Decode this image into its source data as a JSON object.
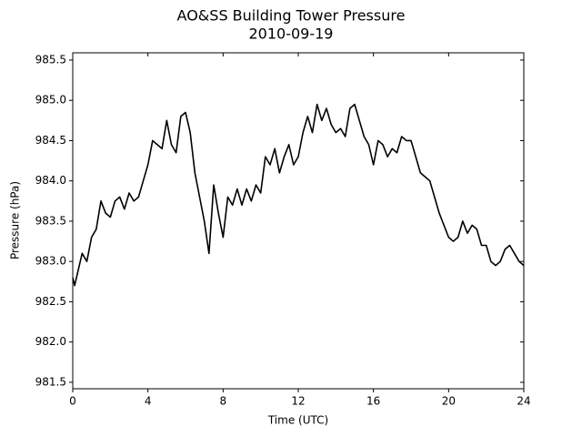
{
  "chart_data": {
    "type": "line",
    "title": "AO&SS Building Tower Pressure",
    "subtitle": "2010-09-19",
    "x_label": "Time (UTC)",
    "y_label": "Pressure (hPa)",
    "color": "#000000",
    "x": [
      0,
      0.1,
      0.25,
      0.5,
      0.75,
      1,
      1.25,
      1.5,
      1.75,
      2,
      2.25,
      2.5,
      2.75,
      3,
      3.25,
      3.5,
      3.75,
      4,
      4.25,
      4.5,
      4.75,
      5,
      5.25,
      5.5,
      5.75,
      6,
      6.25,
      6.5,
      6.75,
      7,
      7.25,
      7.5,
      7.75,
      8,
      8.25,
      8.5,
      8.75,
      9,
      9.25,
      9.5,
      9.75,
      10,
      10.25,
      10.5,
      10.75,
      11,
      11.25,
      11.5,
      11.75,
      12,
      12.25,
      12.5,
      12.75,
      13,
      13.25,
      13.5,
      13.75,
      14,
      14.25,
      14.5,
      14.75,
      15,
      15.25,
      15.5,
      15.75,
      16,
      16.25,
      16.5,
      16.75,
      17,
      17.25,
      17.5,
      17.75,
      18,
      18.25,
      18.5,
      18.75,
      19,
      19.25,
      19.5,
      19.75,
      20,
      20.25,
      20.5,
      20.75,
      21,
      21.25,
      21.5,
      21.75,
      22,
      22.25,
      22.5,
      22.75,
      23,
      23.25,
      23.5,
      23.75,
      24
    ],
    "values": [
      982.8,
      982.7,
      982.85,
      983.1,
      983.0,
      983.3,
      983.4,
      983.75,
      983.6,
      983.55,
      983.75,
      983.8,
      983.65,
      983.85,
      983.75,
      983.8,
      984.0,
      984.2,
      984.5,
      984.45,
      984.4,
      984.75,
      984.45,
      984.35,
      984.8,
      984.85,
      984.6,
      984.1,
      983.8,
      983.5,
      983.1,
      983.95,
      983.6,
      983.3,
      983.8,
      983.7,
      983.9,
      983.7,
      983.9,
      983.75,
      983.95,
      983.85,
      984.3,
      984.2,
      984.4,
      984.1,
      984.3,
      984.45,
      984.2,
      984.3,
      984.6,
      984.8,
      984.6,
      984.95,
      984.75,
      984.9,
      984.7,
      984.6,
      984.65,
      984.55,
      984.9,
      984.95,
      984.75,
      984.55,
      984.45,
      984.2,
      984.5,
      984.45,
      984.3,
      984.4,
      984.35,
      984.55,
      984.5,
      984.5,
      984.3,
      984.1,
      984.05,
      984.0,
      983.8,
      983.6,
      983.45,
      983.3,
      983.25,
      983.3,
      983.5,
      983.35,
      983.45,
      983.4,
      983.2,
      983.2,
      983.0,
      982.95,
      983.0,
      983.15,
      983.2,
      983.1,
      983.0,
      982.95
    ],
    "xlim": [
      0,
      24
    ],
    "xticks": [
      0,
      4,
      8,
      12,
      16,
      20,
      24
    ],
    "ylim": [
      981.42,
      985.59
    ],
    "yticks": [
      981.5,
      {
        "value": 982.0,
        "label": "982.0"
      },
      982.5,
      {
        "value": 983.0,
        "label": "983.0"
      },
      983.5,
      {
        "value": 984.0,
        "label": "984.0"
      },
      984.5,
      {
        "value": 985.0,
        "label": "985.0"
      },
      985.5
    ]
  }
}
